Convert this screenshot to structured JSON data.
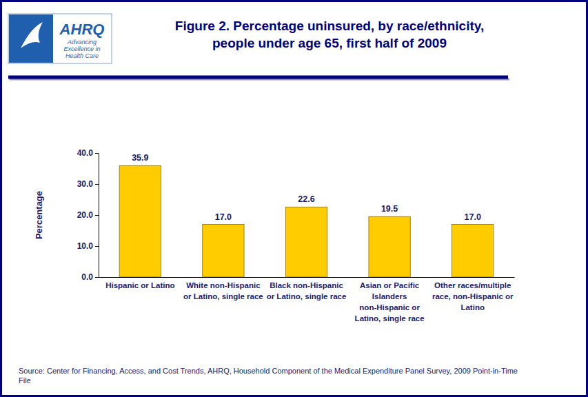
{
  "chart_data": {
    "type": "bar",
    "title": [
      "Figure 2. Percentage uninsured, by race/ethnicity,",
      "people under age 65, first half of 2009"
    ],
    "y_label": "Percentage",
    "source": "Source: Center for Financing, Access, and Cost Trends, AHRQ, Household Component of the Medical Expenditure Panel Survey, 2009 Point-in-Time File",
    "annotations": [
      "AHRQ",
      "Advancing Excellence in Health Care"
    ],
    "categories": [
      "Hispanic or Latino",
      "White non-Hispanic or Latino, single race",
      "Black non-Hispanic or Latino, single race",
      "Asian or Pacific Islanders non-Hispanic or Latino, single race",
      "Other races/multiple race, non-Hispanic or Latino"
    ],
    "values": [
      35.9,
      17.0,
      22.6,
      19.5,
      17.0
    ],
    "value_labels": [
      "35.9",
      "17.0",
      "22.6",
      "19.5",
      "17.0"
    ],
    "data_labels": true,
    "color": "#ffcc00",
    "ylim": [
      0,
      40
    ],
    "yticks": [
      {
        "value": 0,
        "label": "0.0"
      },
      {
        "value": 10,
        "label": "10.0"
      },
      {
        "value": 20,
        "label": "20.0"
      },
      {
        "value": 30,
        "label": "30.0"
      },
      {
        "value": 40,
        "label": "40.0"
      }
    ],
    "grid": false
  }
}
